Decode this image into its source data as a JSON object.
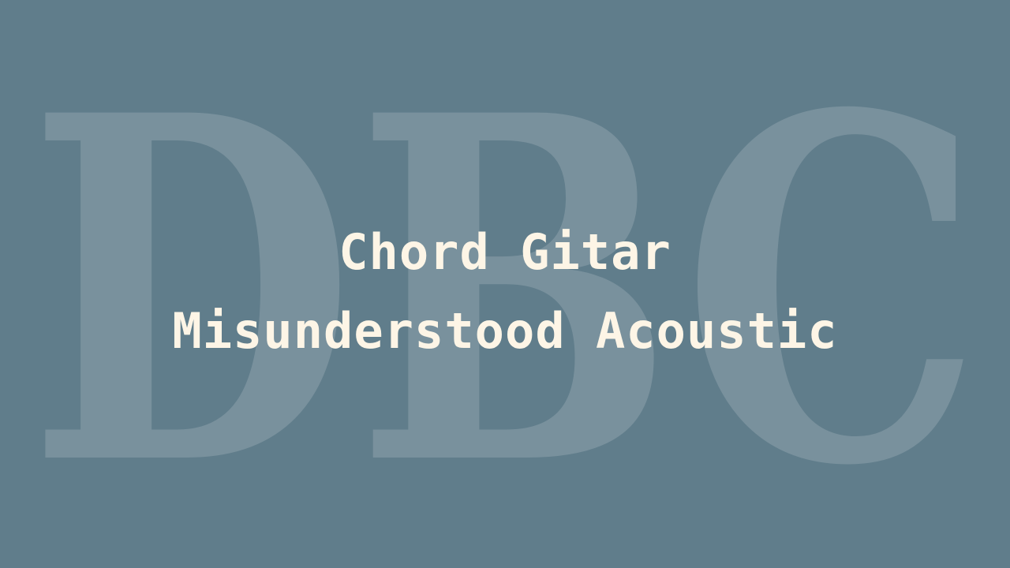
{
  "watermark": {
    "text": "DBC",
    "color": "#ffffff"
  },
  "title": {
    "line1": "Chord Gitar",
    "line2": "Misunderstood Acoustic",
    "color": "#fdf5e6"
  },
  "background": "#607d8b"
}
